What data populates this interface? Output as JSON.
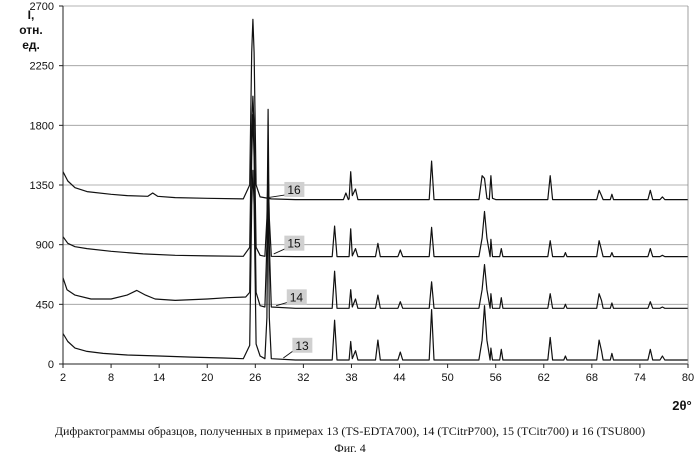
{
  "chart_data": {
    "type": "line",
    "ylabel": "I, отн. ед.",
    "xlabel": "2θ°",
    "xlim": [
      2,
      80
    ],
    "ylim": [
      0,
      2700
    ],
    "x_ticks": [
      2,
      8,
      14,
      20,
      26,
      32,
      38,
      44,
      50,
      56,
      62,
      68,
      74,
      80
    ],
    "y_ticks": [
      0,
      450,
      900,
      1350,
      1800,
      2250,
      2700
    ],
    "grid": "horizontal",
    "series": [
      {
        "name": "13",
        "points": [
          [
            2,
            230
          ],
          [
            2.6,
            170
          ],
          [
            3.5,
            120
          ],
          [
            5,
            95
          ],
          [
            7,
            80
          ],
          [
            10,
            68
          ],
          [
            14,
            60
          ],
          [
            18,
            52
          ],
          [
            22,
            45
          ],
          [
            24.5,
            40
          ],
          [
            25.3,
            140
          ],
          [
            25.55,
            1200
          ],
          [
            25.7,
            1460
          ],
          [
            25.85,
            1200
          ],
          [
            26.1,
            150
          ],
          [
            26.6,
            60
          ],
          [
            27.2,
            40
          ],
          [
            27.45,
            350
          ],
          [
            27.6,
            1490
          ],
          [
            27.75,
            350
          ],
          [
            28.0,
            40
          ],
          [
            31,
            30
          ],
          [
            35.6,
            30
          ],
          [
            35.9,
            330
          ],
          [
            36.2,
            30
          ],
          [
            37.7,
            30
          ],
          [
            37.9,
            170
          ],
          [
            38.1,
            40
          ],
          [
            38.5,
            100
          ],
          [
            38.8,
            30
          ],
          [
            41.0,
            30
          ],
          [
            41.3,
            180
          ],
          [
            41.6,
            30
          ],
          [
            43.8,
            30
          ],
          [
            44.1,
            90
          ],
          [
            44.4,
            30
          ],
          [
            47.7,
            30
          ],
          [
            48.0,
            410
          ],
          [
            48.3,
            30
          ],
          [
            53.9,
            30
          ],
          [
            54.3,
            180
          ],
          [
            54.6,
            440
          ],
          [
            54.9,
            180
          ],
          [
            55.3,
            30
          ],
          [
            55.4,
            120
          ],
          [
            55.6,
            30
          ],
          [
            56.5,
            30
          ],
          [
            56.7,
            110
          ],
          [
            56.9,
            30
          ],
          [
            62.5,
            30
          ],
          [
            62.8,
            200
          ],
          [
            63.1,
            30
          ],
          [
            64.5,
            30
          ],
          [
            64.7,
            60
          ],
          [
            64.9,
            30
          ],
          [
            68.6,
            30
          ],
          [
            68.9,
            180
          ],
          [
            69.2,
            100
          ],
          [
            69.4,
            30
          ],
          [
            70.3,
            30
          ],
          [
            70.5,
            80
          ],
          [
            70.7,
            30
          ],
          [
            75.0,
            30
          ],
          [
            75.3,
            110
          ],
          [
            75.6,
            30
          ],
          [
            76.5,
            30
          ],
          [
            76.8,
            60
          ],
          [
            77.1,
            30
          ],
          [
            80,
            30
          ]
        ]
      },
      {
        "name": "14",
        "points": [
          [
            2,
            650
          ],
          [
            2.5,
            560
          ],
          [
            3.5,
            520
          ],
          [
            5.5,
            490
          ],
          [
            8,
            490
          ],
          [
            10,
            520
          ],
          [
            11.2,
            555
          ],
          [
            12.3,
            520
          ],
          [
            13.5,
            490
          ],
          [
            16,
            480
          ],
          [
            20,
            490
          ],
          [
            22.5,
            500
          ],
          [
            24.8,
            505
          ],
          [
            25.3,
            540
          ],
          [
            25.55,
            1560
          ],
          [
            25.7,
            1880
          ],
          [
            25.85,
            1560
          ],
          [
            26.1,
            540
          ],
          [
            26.6,
            440
          ],
          [
            27.2,
            430
          ],
          [
            27.45,
            900
          ],
          [
            27.6,
            1920
          ],
          [
            27.75,
            900
          ],
          [
            28.0,
            430
          ],
          [
            31,
            420
          ],
          [
            35.6,
            420
          ],
          [
            35.9,
            700
          ],
          [
            36.2,
            420
          ],
          [
            37.7,
            420
          ],
          [
            37.9,
            560
          ],
          [
            38.1,
            430
          ],
          [
            38.5,
            490
          ],
          [
            38.8,
            420
          ],
          [
            41.0,
            420
          ],
          [
            41.3,
            520
          ],
          [
            41.6,
            420
          ],
          [
            43.8,
            420
          ],
          [
            44.1,
            470
          ],
          [
            44.4,
            420
          ],
          [
            47.7,
            420
          ],
          [
            48.0,
            620
          ],
          [
            48.3,
            420
          ],
          [
            53.9,
            420
          ],
          [
            54.3,
            560
          ],
          [
            54.6,
            750
          ],
          [
            54.9,
            560
          ],
          [
            55.3,
            420
          ],
          [
            55.4,
            530
          ],
          [
            55.6,
            420
          ],
          [
            56.5,
            420
          ],
          [
            56.7,
            500
          ],
          [
            56.9,
            420
          ],
          [
            62.5,
            420
          ],
          [
            62.8,
            530
          ],
          [
            63.1,
            420
          ],
          [
            64.5,
            420
          ],
          [
            64.7,
            450
          ],
          [
            64.9,
            420
          ],
          [
            68.6,
            420
          ],
          [
            68.9,
            530
          ],
          [
            69.2,
            480
          ],
          [
            69.4,
            420
          ],
          [
            70.3,
            420
          ],
          [
            70.5,
            460
          ],
          [
            70.7,
            420
          ],
          [
            75.0,
            420
          ],
          [
            75.3,
            470
          ],
          [
            75.6,
            420
          ],
          [
            76.5,
            420
          ],
          [
            76.8,
            430
          ],
          [
            77.1,
            420
          ],
          [
            80,
            420
          ]
        ]
      },
      {
        "name": "15",
        "points": [
          [
            2,
            960
          ],
          [
            2.6,
            910
          ],
          [
            3.5,
            885
          ],
          [
            5,
            870
          ],
          [
            8,
            850
          ],
          [
            12,
            830
          ],
          [
            16,
            820
          ],
          [
            20,
            815
          ],
          [
            24.5,
            812
          ],
          [
            25.3,
            880
          ],
          [
            25.55,
            1800
          ],
          [
            25.7,
            2020
          ],
          [
            25.85,
            1800
          ],
          [
            26.1,
            880
          ],
          [
            26.6,
            820
          ],
          [
            27.2,
            812
          ],
          [
            27.45,
            1100
          ],
          [
            27.6,
            1480
          ],
          [
            27.75,
            1100
          ],
          [
            28.0,
            812
          ],
          [
            31,
            810
          ],
          [
            35.6,
            810
          ],
          [
            35.9,
            1040
          ],
          [
            36.2,
            810
          ],
          [
            37.7,
            810
          ],
          [
            37.9,
            1020
          ],
          [
            38.1,
            815
          ],
          [
            38.5,
            870
          ],
          [
            38.8,
            810
          ],
          [
            41.0,
            810
          ],
          [
            41.3,
            910
          ],
          [
            41.6,
            810
          ],
          [
            43.8,
            810
          ],
          [
            44.1,
            860
          ],
          [
            44.4,
            810
          ],
          [
            47.7,
            810
          ],
          [
            48.0,
            1030
          ],
          [
            48.3,
            810
          ],
          [
            53.9,
            810
          ],
          [
            54.3,
            950
          ],
          [
            54.6,
            1150
          ],
          [
            54.9,
            950
          ],
          [
            55.3,
            810
          ],
          [
            55.4,
            940
          ],
          [
            55.6,
            810
          ],
          [
            56.5,
            810
          ],
          [
            56.7,
            870
          ],
          [
            56.9,
            810
          ],
          [
            62.5,
            810
          ],
          [
            62.8,
            930
          ],
          [
            63.1,
            810
          ],
          [
            64.5,
            810
          ],
          [
            64.7,
            840
          ],
          [
            64.9,
            810
          ],
          [
            68.6,
            810
          ],
          [
            68.9,
            930
          ],
          [
            69.2,
            860
          ],
          [
            69.4,
            810
          ],
          [
            70.3,
            810
          ],
          [
            70.5,
            840
          ],
          [
            70.7,
            810
          ],
          [
            75.0,
            810
          ],
          [
            75.3,
            870
          ],
          [
            75.6,
            810
          ],
          [
            76.5,
            810
          ],
          [
            76.8,
            820
          ],
          [
            77.1,
            810
          ],
          [
            80,
            810
          ]
        ]
      },
      {
        "name": "16",
        "points": [
          [
            2,
            1450
          ],
          [
            2.6,
            1380
          ],
          [
            3.5,
            1330
          ],
          [
            5,
            1300
          ],
          [
            8,
            1280
          ],
          [
            10,
            1270
          ],
          [
            12.6,
            1265
          ],
          [
            13.2,
            1290
          ],
          [
            13.8,
            1265
          ],
          [
            16,
            1255
          ],
          [
            20,
            1250
          ],
          [
            24.5,
            1245
          ],
          [
            25.3,
            1350
          ],
          [
            25.55,
            2350
          ],
          [
            25.7,
            2600
          ],
          [
            25.85,
            2350
          ],
          [
            26.1,
            1350
          ],
          [
            26.6,
            1260
          ],
          [
            28,
            1245
          ],
          [
            31,
            1240
          ],
          [
            37.0,
            1240
          ],
          [
            37.3,
            1290
          ],
          [
            37.6,
            1240
          ],
          [
            37.7,
            1245
          ],
          [
            37.9,
            1450
          ],
          [
            38.1,
            1270
          ],
          [
            38.5,
            1320
          ],
          [
            38.8,
            1240
          ],
          [
            47.7,
            1240
          ],
          [
            48.0,
            1530
          ],
          [
            48.3,
            1240
          ],
          [
            53.9,
            1240
          ],
          [
            54.3,
            1420
          ],
          [
            54.6,
            1400
          ],
          [
            54.9,
            1250
          ],
          [
            55.2,
            1240
          ],
          [
            55.4,
            1420
          ],
          [
            55.6,
            1250
          ],
          [
            56.0,
            1240
          ],
          [
            62.5,
            1240
          ],
          [
            62.8,
            1420
          ],
          [
            63.1,
            1240
          ],
          [
            68.6,
            1240
          ],
          [
            68.9,
            1310
          ],
          [
            69.2,
            1270
          ],
          [
            69.4,
            1240
          ],
          [
            70.3,
            1240
          ],
          [
            70.5,
            1280
          ],
          [
            70.7,
            1240
          ],
          [
            75.0,
            1240
          ],
          [
            75.3,
            1310
          ],
          [
            75.6,
            1240
          ],
          [
            76.5,
            1240
          ],
          [
            76.8,
            1260
          ],
          [
            77.1,
            1240
          ],
          [
            80,
            1240
          ]
        ]
      }
    ],
    "annotations": [
      {
        "text": "16",
        "x": 30,
        "y": 1290,
        "anchor_x": 27.6,
        "anchor_y": 1255
      },
      {
        "text": "15",
        "x": 30,
        "y": 885,
        "anchor_x": 28.3,
        "anchor_y": 830
      },
      {
        "text": "14",
        "x": 30.3,
        "y": 480,
        "anchor_x": 28.6,
        "anchor_y": 440
      },
      {
        "text": "13",
        "x": 31,
        "y": 115,
        "anchor_x": 29.5,
        "anchor_y": 45
      }
    ]
  },
  "caption": "Дифрактограммы образцов, полученных в примерах 13 (TS-EDTA700), 14 (TCitrP700), 15 (TCitr700) и 16 (TSU800)",
  "figure_label": "Фиг. 4",
  "colors": {
    "line": "#111111",
    "grid": "#9a9a9a",
    "label_box": "#d0d0d0"
  }
}
